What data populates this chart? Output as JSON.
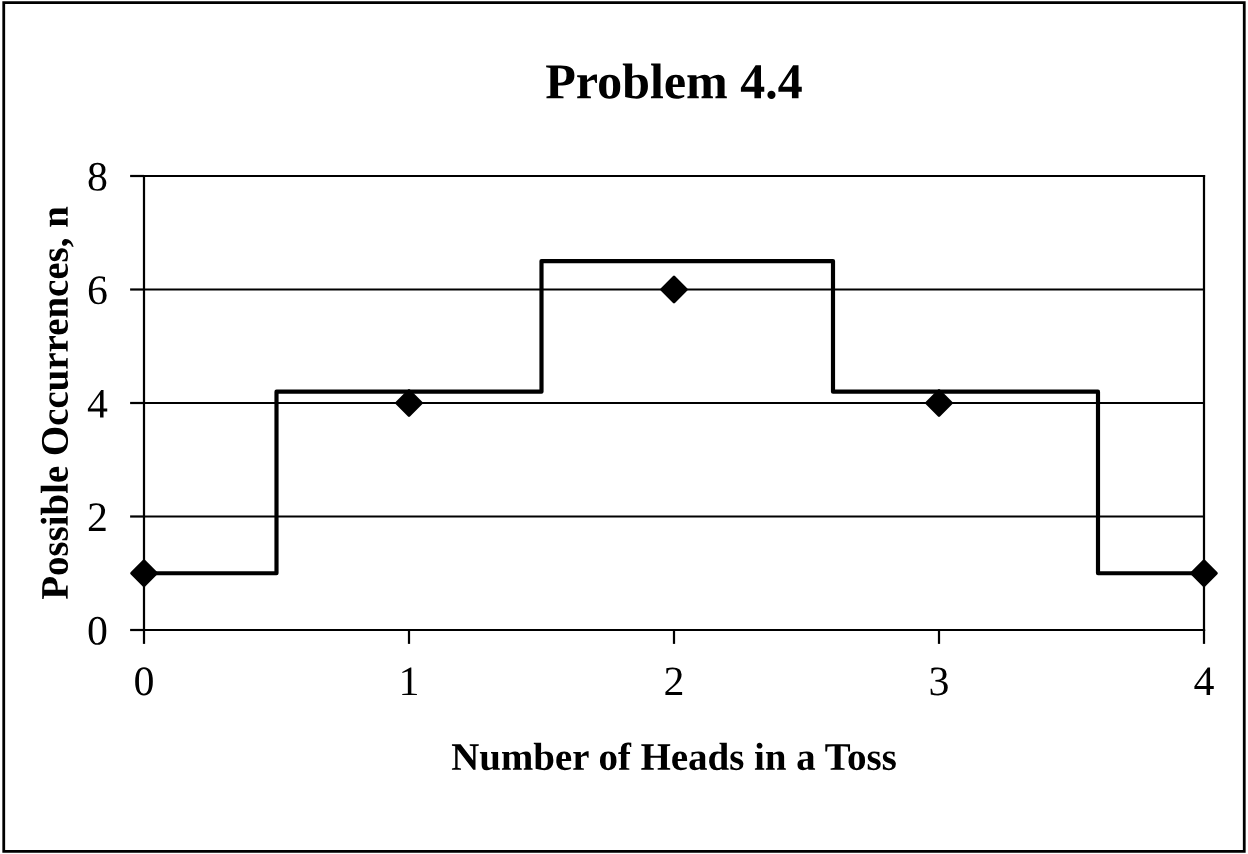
{
  "chart_data": {
    "type": "scatter",
    "title": "Problem 4.4",
    "xlabel": "Number of Heads in a Toss",
    "ylabel": "Possible Occurrences, n",
    "series": [
      {
        "type": "step",
        "color": "#000000",
        "x": [
          0,
          0.5,
          1.5,
          2.6,
          3.6,
          4
        ],
        "values": [
          1,
          4.2,
          6.5,
          4.2,
          1,
          1
        ],
        "marker": "none"
      },
      {
        "color": "#000000",
        "x": [
          0,
          1,
          2,
          3,
          4
        ],
        "values": [
          1,
          4,
          6,
          4,
          1
        ],
        "marker": "diamond"
      }
    ],
    "xlim": [
      0,
      4
    ],
    "xticks": [
      0,
      1,
      2,
      3,
      4
    ],
    "ylim": [
      0,
      8
    ],
    "yticks": [
      0,
      2,
      4,
      6,
      8
    ],
    "grid": "y",
    "legend": false
  }
}
